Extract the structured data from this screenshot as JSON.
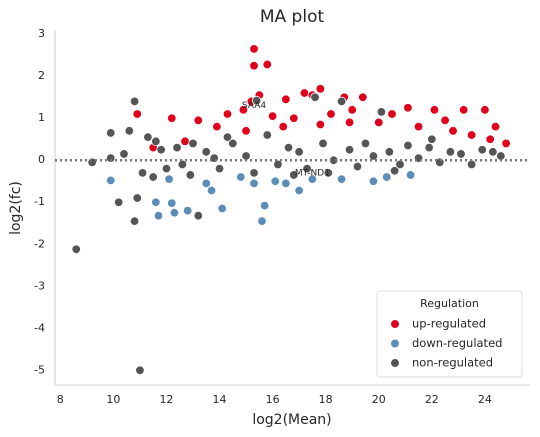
{
  "chart_data": {
    "type": "scatter",
    "title": "MA plot",
    "x_label": "log2(Mean)",
    "y_label": "log2(fc)",
    "xlim": [
      7.8,
      25.7
    ],
    "ylim": [
      -5.35,
      3.1
    ],
    "xticks": [
      8,
      10,
      12,
      14,
      16,
      18,
      20,
      22,
      24
    ],
    "yticks": [
      -5,
      -4,
      -3,
      -2,
      -1,
      0,
      1,
      2,
      3
    ],
    "hline": 0,
    "legend_title": "Regulation",
    "legend_position": "lower right",
    "annotations": [
      {
        "text": "SAA4",
        "x": 15.3,
        "y": 1.3
      },
      {
        "text": "MT-ND1",
        "x": 17.5,
        "y": -0.3
      }
    ],
    "series": [
      {
        "name": "up-regulated",
        "color": "#e0001b",
        "x": [
          15.3,
          15.3,
          15.8,
          15.5,
          15.2,
          14.9,
          14.3,
          16.5,
          17.2,
          17.5,
          17.8,
          18.7,
          19.4,
          21.1,
          22.1,
          23.2,
          24,
          24.4,
          22.5,
          20.5,
          19,
          18.2,
          16.8,
          16,
          13.2,
          12.2,
          10.9,
          12.7,
          13.9,
          20,
          21.5,
          23.5,
          24.8,
          17.8,
          18.9,
          16.4,
          15,
          22.8,
          11.5,
          24.2
        ],
        "values": [
          2.65,
          2.25,
          2.28,
          1.55,
          1.4,
          1.2,
          1.1,
          1.45,
          1.6,
          1.55,
          1.7,
          1.5,
          1.5,
          1.25,
          1.2,
          1.2,
          1.2,
          0.8,
          0.95,
          1.1,
          1.2,
          1.1,
          1.0,
          1.05,
          0.95,
          1.0,
          1.1,
          0.45,
          0.8,
          0.9,
          0.8,
          0.6,
          0.4,
          0.85,
          0.9,
          0.8,
          0.7,
          0.7,
          0.3,
          0.5
        ]
      },
      {
        "name": "down-regulated",
        "color": "#5b8db8",
        "x": [
          9.9,
          11.6,
          11.7,
          12.2,
          12.3,
          12.8,
          13.7,
          14.1,
          15.3,
          15.7,
          15.6,
          16.5,
          17,
          17.5,
          18.6,
          19.8,
          20.3,
          13.5,
          12.1,
          21.2,
          16.1,
          14.8
        ],
        "values": [
          -0.48,
          -1.0,
          -1.32,
          -1.02,
          -1.25,
          -1.2,
          -0.72,
          -1.15,
          -0.55,
          -1.08,
          -1.45,
          -0.55,
          -0.72,
          -0.45,
          -0.45,
          -0.5,
          -0.4,
          -0.55,
          -0.45,
          -0.35,
          -0.5,
          -0.4
        ]
      },
      {
        "name": "non-regulated",
        "color": "#555555",
        "x": [
          8.6,
          11,
          9.2,
          9.9,
          9.9,
          10.2,
          10.4,
          10.6,
          10.8,
          10.8,
          10.9,
          11.1,
          11.3,
          11.5,
          11.8,
          12.0,
          12.4,
          12.6,
          13,
          13.2,
          13.5,
          14,
          14.5,
          15,
          15.4,
          15.3,
          15.8,
          16.2,
          16.6,
          17,
          17.3,
          17.6,
          17.9,
          18.3,
          18.6,
          18.9,
          19.2,
          19.5,
          19.8,
          20.1,
          20.4,
          20.8,
          21.1,
          21.5,
          21.9,
          22.3,
          22.7,
          23.1,
          23.5,
          23.9,
          24.3,
          24.6,
          12.9,
          14.3,
          16.8,
          18.1,
          20.6,
          22,
          13.8,
          11.6
        ],
        "values": [
          -2.12,
          -5,
          -0.05,
          0.65,
          0.05,
          -1,
          0.15,
          0.7,
          1.4,
          -1.45,
          -0.9,
          -0.3,
          0.55,
          -0.4,
          0.25,
          -0.2,
          0.3,
          -0.1,
          0.4,
          -1.32,
          0.2,
          -0.2,
          0.4,
          0.1,
          1.42,
          -0.3,
          0.6,
          -0.1,
          0.3,
          0.2,
          -0.2,
          1.5,
          0.4,
          0,
          1.4,
          0.25,
          -0.15,
          0.4,
          0.1,
          1.15,
          0.2,
          -0.1,
          0.35,
          0.05,
          0.3,
          -0.05,
          0.2,
          0.15,
          -0.1,
          0.25,
          0.2,
          0.1,
          -0.35,
          0.55,
          -0.35,
          -0.3,
          -0.25,
          0.5,
          0.05,
          0.45
        ]
      }
    ]
  }
}
